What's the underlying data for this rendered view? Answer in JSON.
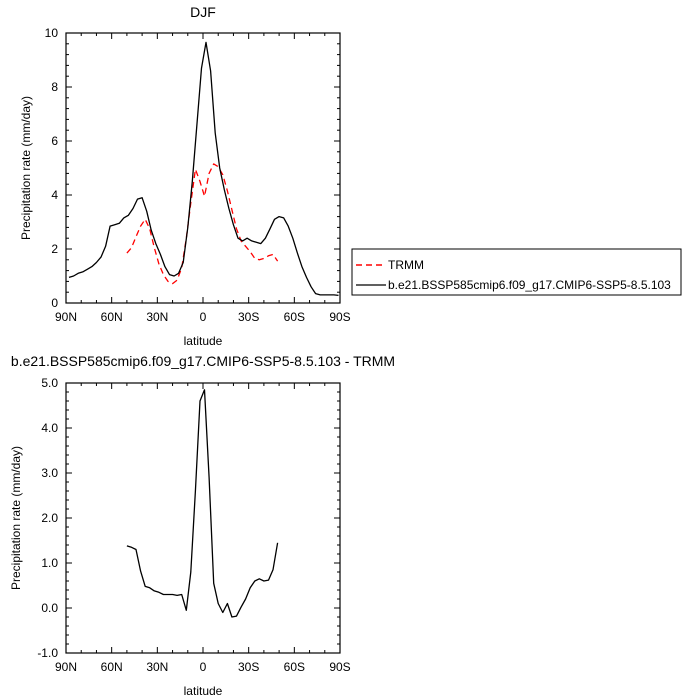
{
  "chart_data": [
    {
      "type": "line",
      "title": "DJF",
      "xlabel": "latitude",
      "ylabel": "Precipitation rate (mm/day)",
      "xlim": [
        90,
        -90
      ],
      "ylim": [
        0,
        10
      ],
      "x_ticks": [
        90,
        60,
        30,
        0,
        -30,
        -60,
        -90
      ],
      "x_tick_labels": [
        "90N",
        "60N",
        "30N",
        "0",
        "30S",
        "60S",
        "90S"
      ],
      "y_ticks": [
        0,
        2,
        4,
        6,
        8,
        10
      ],
      "y_tick_labels": [
        "0",
        "2",
        "4",
        "6",
        "8",
        "10"
      ],
      "legend": {
        "placement": "right"
      },
      "series": [
        {
          "name": "TRMM",
          "color": "#ff0000",
          "style": "dashed",
          "x": [
            50,
            47,
            44,
            41,
            38,
            35,
            32,
            29,
            26,
            23,
            20,
            17,
            14,
            11,
            8,
            5,
            2,
            -1,
            -4,
            -7,
            -10,
            -13,
            -16,
            -19,
            -22,
            -25,
            -28,
            -31,
            -34,
            -37,
            -40,
            -43,
            -46,
            -49
          ],
          "y": [
            1.85,
            2.05,
            2.45,
            2.85,
            3.1,
            2.75,
            2.05,
            1.45,
            1.05,
            0.8,
            0.72,
            0.85,
            1.3,
            2.4,
            3.7,
            4.95,
            4.5,
            3.95,
            4.8,
            5.15,
            5.05,
            4.75,
            4.15,
            3.45,
            2.75,
            2.3,
            2.1,
            1.9,
            1.65,
            1.6,
            1.65,
            1.75,
            1.8,
            1.55
          ]
        },
        {
          "name": "b.e21.BSSP585cmip6.f09_g17.CMIP6-SSP5-8.5.103",
          "color": "#000000",
          "style": "solid",
          "x": [
            88,
            85,
            82,
            79,
            76,
            73,
            70,
            67,
            64,
            61,
            58,
            55,
            52,
            49,
            46,
            43,
            40,
            37,
            34,
            31,
            28,
            25,
            22,
            19,
            16,
            13,
            10,
            7,
            4,
            1,
            -2,
            -5,
            -8,
            -11,
            -14,
            -17,
            -20,
            -23,
            -26,
            -29,
            -32,
            -35,
            -38,
            -41,
            -44,
            -47,
            -50,
            -53,
            -56,
            -59,
            -62,
            -65,
            -68,
            -71,
            -74,
            -77,
            -80,
            -83,
            -86,
            -89
          ],
          "y": [
            0.95,
            1.0,
            1.1,
            1.15,
            1.25,
            1.35,
            1.5,
            1.7,
            2.1,
            2.85,
            2.9,
            2.95,
            3.15,
            3.25,
            3.5,
            3.85,
            3.9,
            3.4,
            2.7,
            2.2,
            1.8,
            1.35,
            1.05,
            1.0,
            1.1,
            1.5,
            2.8,
            4.5,
            6.6,
            8.7,
            9.65,
            8.6,
            6.3,
            5.0,
            4.2,
            3.5,
            2.9,
            2.4,
            2.3,
            2.4,
            2.3,
            2.25,
            2.2,
            2.4,
            2.75,
            3.1,
            3.2,
            3.15,
            2.85,
            2.4,
            1.85,
            1.35,
            0.95,
            0.6,
            0.35,
            0.3,
            0.3,
            0.3,
            0.3,
            0.28
          ]
        }
      ]
    },
    {
      "type": "line",
      "title": "b.e21.BSSP585cmip6.f09_g17.CMIP6-SSP5-8.5.103 - TRMM",
      "xlabel": "latitude",
      "ylabel": "Precipitation rate (mm/day)",
      "xlim": [
        90,
        -90
      ],
      "ylim": [
        -1,
        5
      ],
      "x_ticks": [
        90,
        60,
        30,
        0,
        -30,
        -60,
        -90
      ],
      "x_tick_labels": [
        "90N",
        "60N",
        "30N",
        "0",
        "30S",
        "60S",
        "90S"
      ],
      "y_ticks": [
        -1,
        0,
        1,
        2,
        3,
        4,
        5
      ],
      "y_tick_labels": [
        "-1.0",
        "0.0",
        "1.0",
        "2.0",
        "3.0",
        "4.0",
        "5.0"
      ],
      "series": [
        {
          "color": "#000000",
          "style": "solid",
          "x": [
            50,
            47,
            44,
            41,
            38,
            35,
            32,
            29,
            26,
            23,
            20,
            17,
            14,
            11,
            8,
            5,
            2,
            -1,
            -4,
            -7,
            -10,
            -13,
            -16,
            -19,
            -22,
            -25,
            -28,
            -31,
            -34,
            -37,
            -40,
            -43,
            -46,
            -49
          ],
          "y": [
            1.38,
            1.35,
            1.3,
            0.82,
            0.48,
            0.45,
            0.38,
            0.35,
            0.3,
            0.3,
            0.3,
            0.28,
            0.3,
            -0.05,
            0.8,
            2.6,
            4.6,
            4.85,
            2.9,
            0.55,
            0.1,
            -0.1,
            0.1,
            -0.2,
            -0.18,
            0.02,
            0.2,
            0.45,
            0.6,
            0.65,
            0.6,
            0.62,
            0.85,
            1.45
          ]
        }
      ]
    }
  ]
}
